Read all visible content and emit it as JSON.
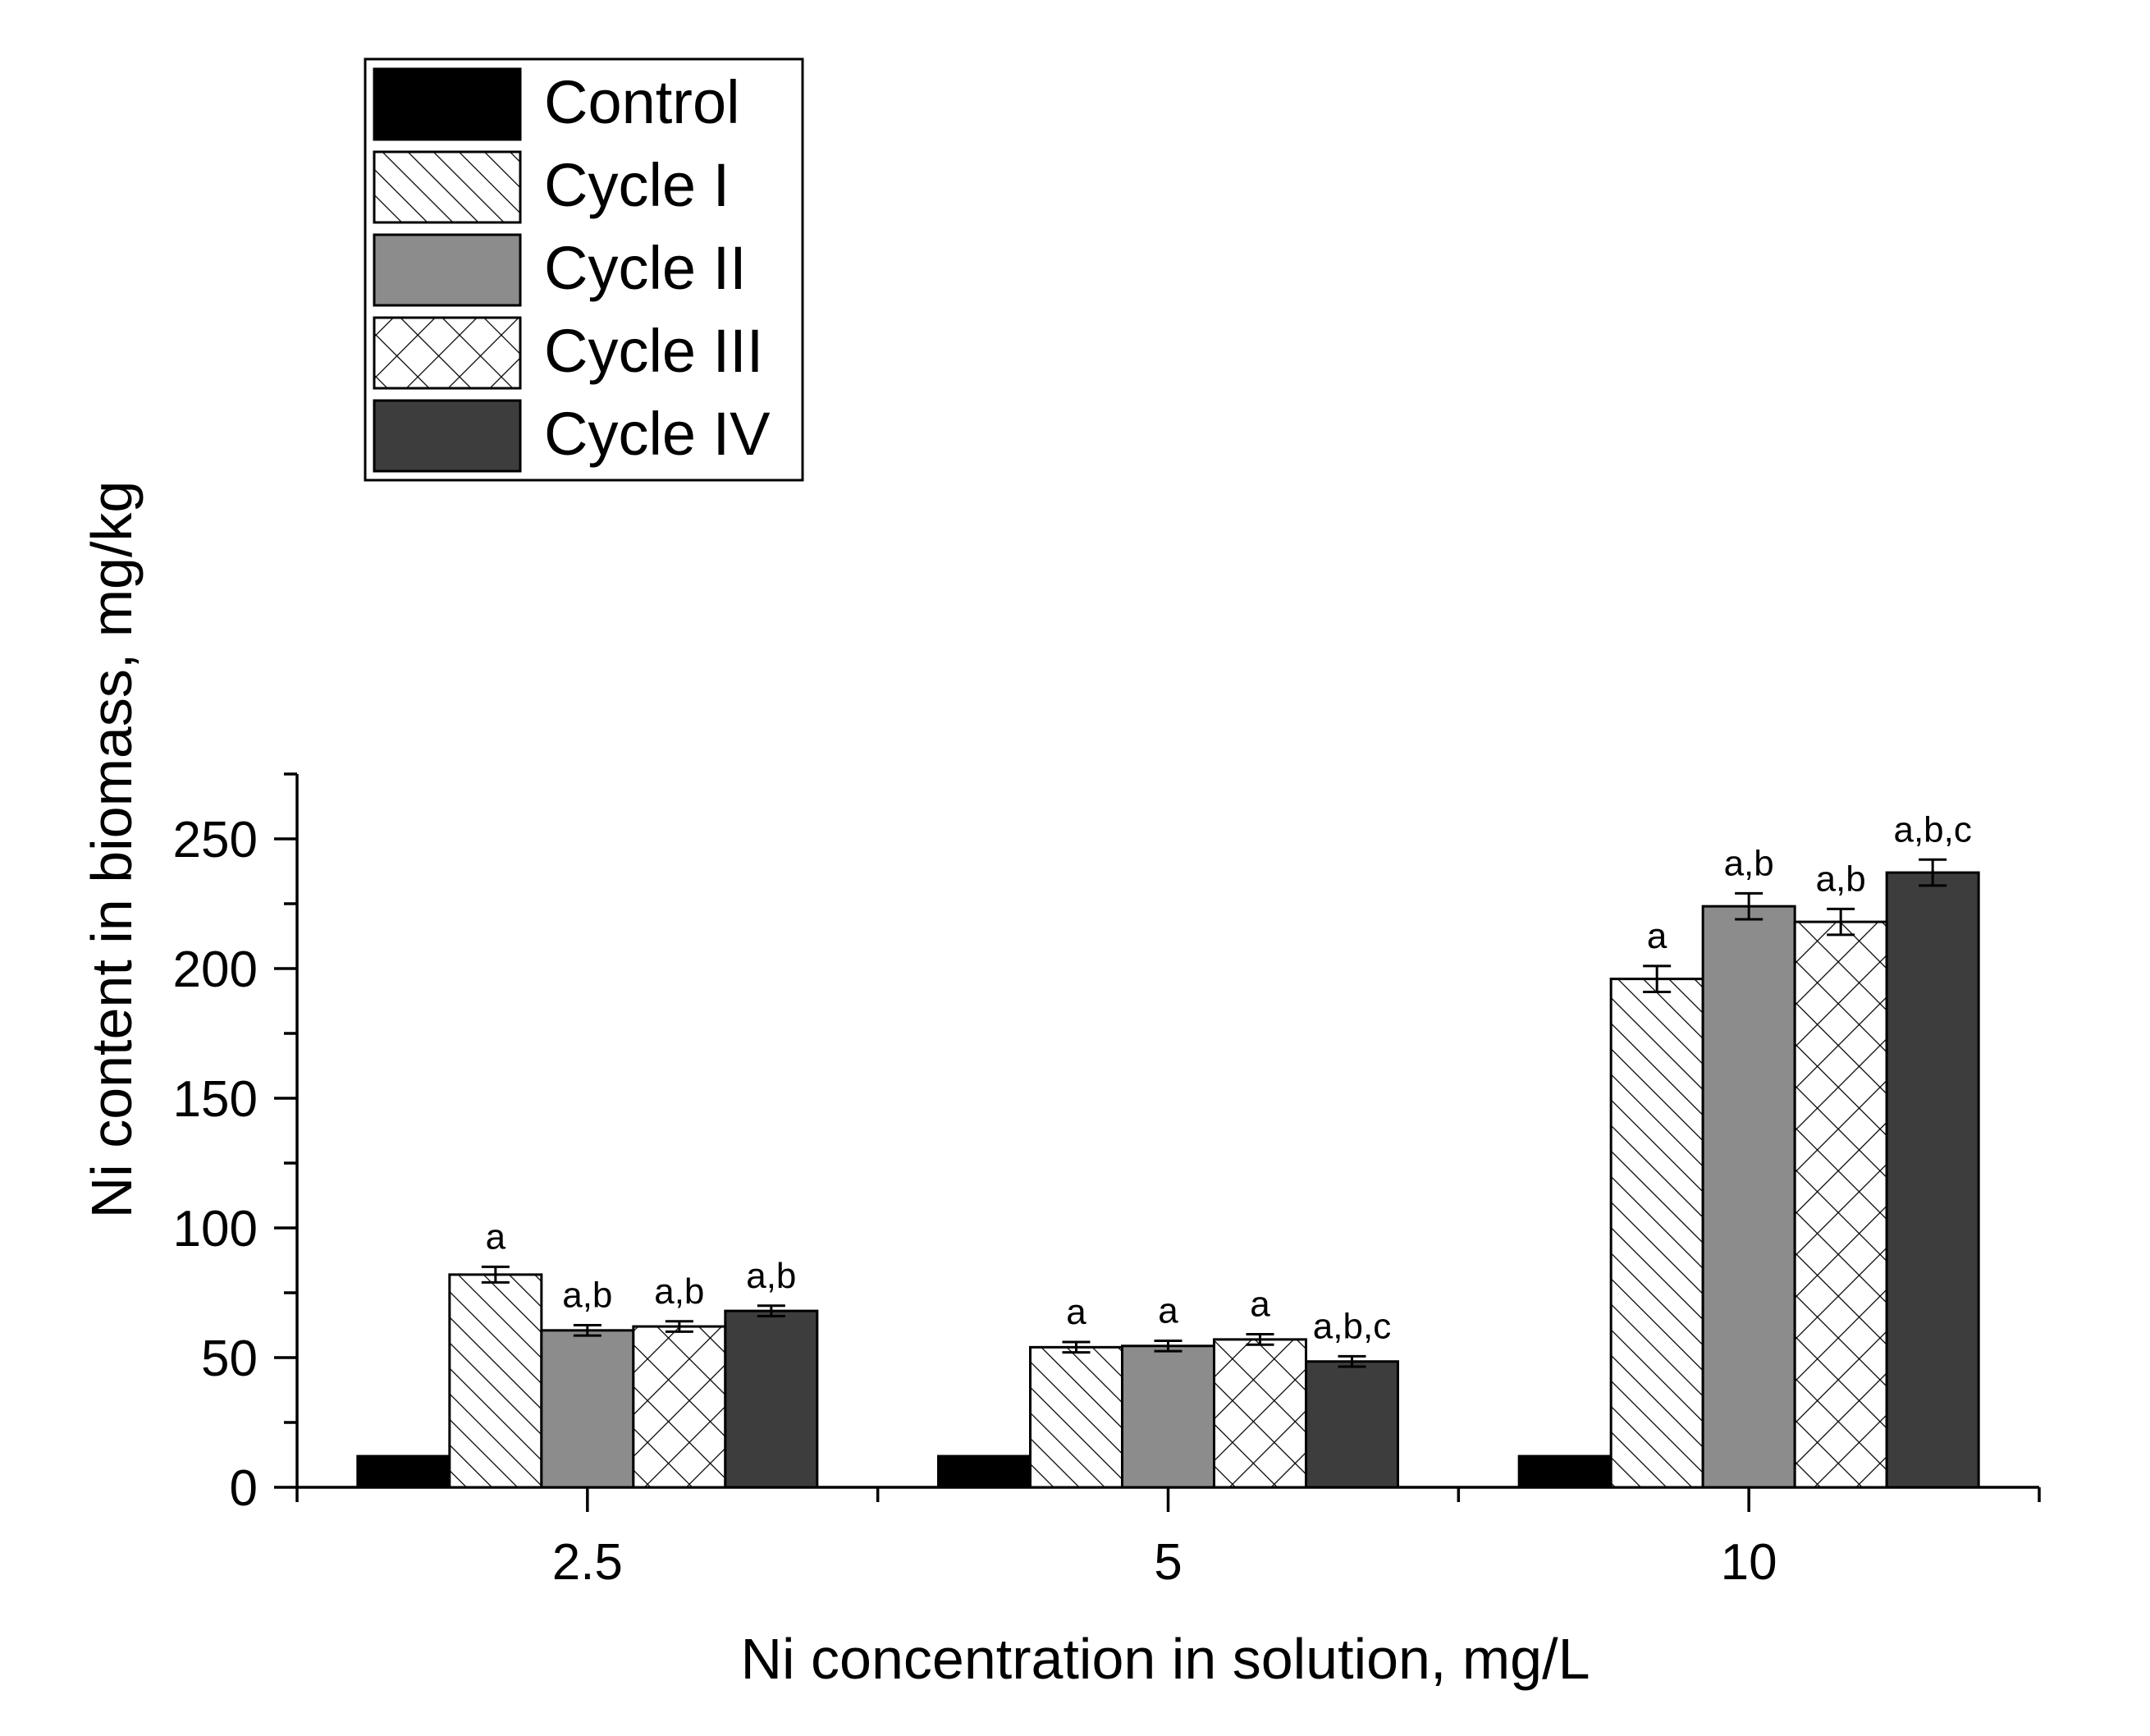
{
  "chart_data": {
    "type": "bar",
    "title": "",
    "xlabel": "Ni concentration in solution, mg/L",
    "ylabel": "Ni content in biomass, mg/kg",
    "categories": [
      "2.5",
      "5",
      "10"
    ],
    "ylim": [
      0,
      275
    ],
    "yticks": [
      0,
      50,
      100,
      150,
      200,
      250
    ],
    "y_minor_step": 25,
    "grid": false,
    "legend_position": "top-left",
    "series": [
      {
        "name": "Control",
        "pattern": "solid-black",
        "color": "#000000",
        "values": [
          12,
          12,
          12
        ],
        "errors": [
          0,
          0,
          0
        ],
        "labels": [
          "",
          "",
          ""
        ]
      },
      {
        "name": "Cycle I",
        "pattern": "diagonal-hatch",
        "color": "#ffffff",
        "values": [
          82,
          54,
          196
        ],
        "errors": [
          3,
          2,
          5
        ],
        "labels": [
          "a",
          "a",
          "a"
        ]
      },
      {
        "name": "Cycle II",
        "pattern": "solid-gray",
        "color": "#8c8c8c",
        "values": [
          60.5,
          54.5,
          224
        ],
        "errors": [
          2,
          2,
          5
        ],
        "labels": [
          "a,b",
          "a",
          "a,b"
        ]
      },
      {
        "name": "Cycle III",
        "pattern": "cross-hatch",
        "color": "#ffffff",
        "values": [
          62,
          57,
          218
        ],
        "errors": [
          2,
          2,
          5
        ],
        "labels": [
          "a,b",
          "a",
          "a,b"
        ]
      },
      {
        "name": "Cycle IV",
        "pattern": "solid-darkgray",
        "color": "#3d3d3d",
        "values": [
          68,
          48.5,
          237
        ],
        "errors": [
          2,
          2,
          5
        ],
        "labels": [
          "a,b",
          "a,b,c",
          "a,b,c"
        ]
      }
    ]
  }
}
